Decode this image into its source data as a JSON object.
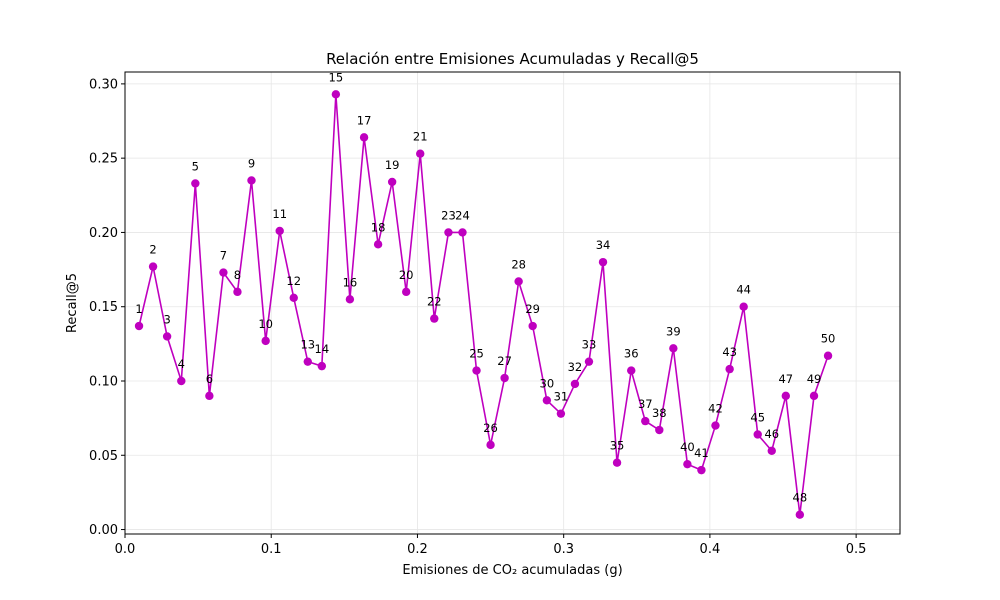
{
  "chart_data": {
    "type": "line",
    "title": "Relación entre Emisiones Acumuladas y Recall@5",
    "xlabel": "Emisiones de CO₂ acumuladas (g)",
    "ylabel": "Recall@5",
    "xlim": [
      0,
      0.53
    ],
    "ylim": [
      -0.003,
      0.308
    ],
    "xticks": [
      0.0,
      0.1,
      0.2,
      0.3,
      0.4,
      0.5
    ],
    "xtick_labels": [
      "0.0",
      "0.1",
      "0.2",
      "0.3",
      "0.4",
      "0.5"
    ],
    "yticks": [
      0.0,
      0.05,
      0.1,
      0.15,
      0.2,
      0.25,
      0.3
    ],
    "ytick_labels": [
      "0.00",
      "0.05",
      "0.10",
      "0.15",
      "0.20",
      "0.25",
      "0.30"
    ],
    "grid": true,
    "legend": "none",
    "colors": {
      "series": "#bf00bf",
      "grid": "#e6e6e6",
      "axis": "#000000"
    },
    "series": [
      {
        "labels": [
          "1",
          "2",
          "3",
          "4",
          "5",
          "6",
          "7",
          "8",
          "9",
          "10",
          "11",
          "12",
          "13",
          "14",
          "15",
          "16",
          "17",
          "18",
          "19",
          "20",
          "21",
          "22",
          "23",
          "24",
          "25",
          "26",
          "27",
          "28",
          "29",
          "30",
          "31",
          "32",
          "33",
          "34",
          "35",
          "36",
          "37",
          "38",
          "39",
          "40",
          "41",
          "42",
          "43",
          "44",
          "45",
          "46",
          "47",
          "48",
          "49",
          "50"
        ],
        "x": [
          0.0096,
          0.0192,
          0.0288,
          0.0385,
          0.0481,
          0.0577,
          0.0673,
          0.0769,
          0.0865,
          0.0962,
          0.1058,
          0.1154,
          0.125,
          0.1346,
          0.1442,
          0.1538,
          0.1635,
          0.1731,
          0.1827,
          0.1923,
          0.2019,
          0.2115,
          0.2212,
          0.2308,
          0.2404,
          0.25,
          0.2596,
          0.2692,
          0.2788,
          0.2885,
          0.2981,
          0.3077,
          0.3173,
          0.3269,
          0.3365,
          0.3462,
          0.3558,
          0.3654,
          0.375,
          0.3846,
          0.3942,
          0.4038,
          0.4135,
          0.4231,
          0.4327,
          0.4423,
          0.4519,
          0.4615,
          0.4712,
          0.4808
        ],
        "y": [
          0.137,
          0.177,
          0.13,
          0.1,
          0.233,
          0.09,
          0.173,
          0.16,
          0.235,
          0.127,
          0.201,
          0.156,
          0.113,
          0.11,
          0.293,
          0.155,
          0.264,
          0.192,
          0.234,
          0.16,
          0.253,
          0.142,
          0.2,
          0.2,
          0.107,
          0.057,
          0.102,
          0.167,
          0.137,
          0.087,
          0.078,
          0.098,
          0.113,
          0.18,
          0.045,
          0.107,
          0.073,
          0.067,
          0.122,
          0.044,
          0.04,
          0.07,
          0.108,
          0.15,
          0.064,
          0.053,
          0.09,
          0.01,
          0.09,
          0.117
        ]
      }
    ]
  }
}
